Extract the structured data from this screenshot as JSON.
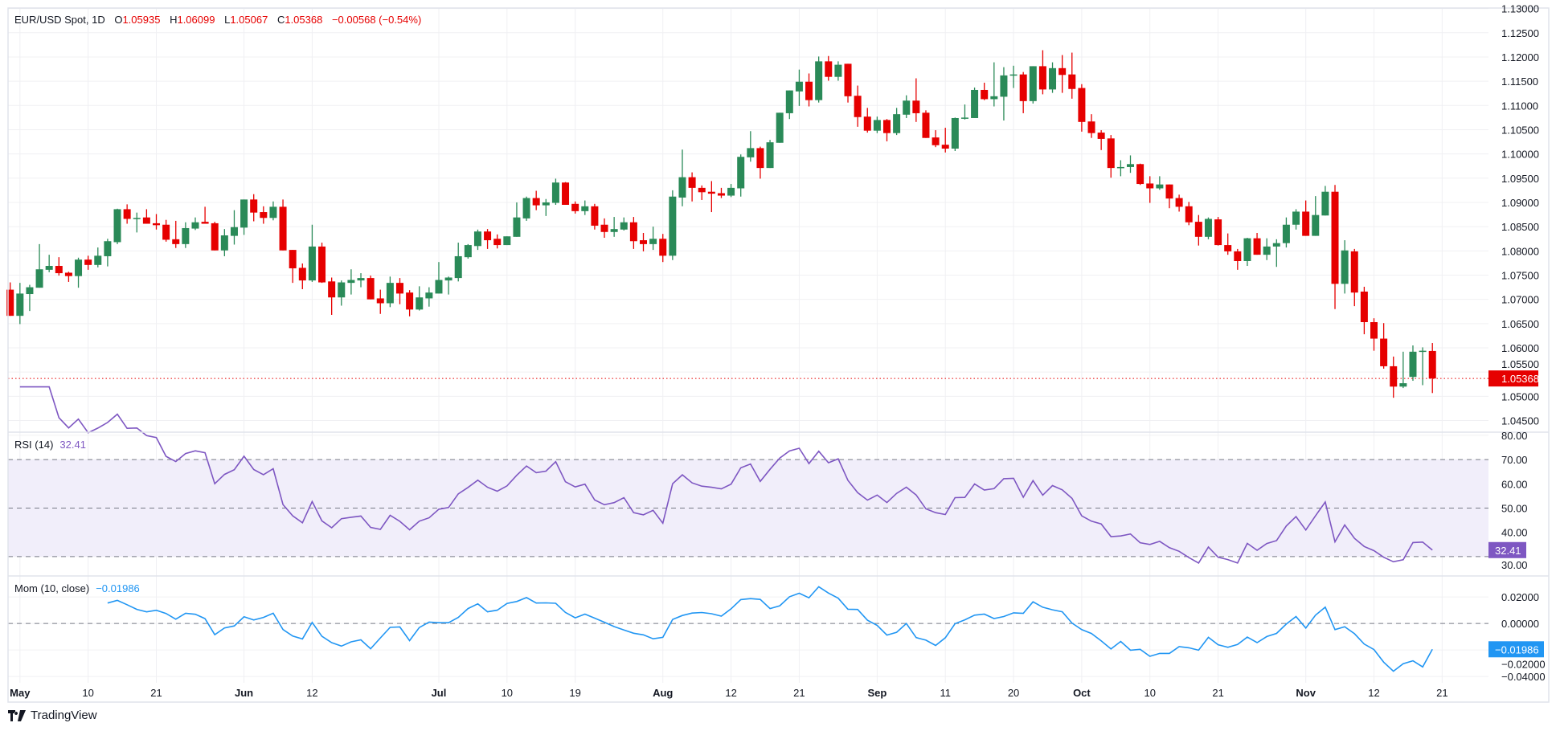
{
  "header": {
    "symbol": "EUR/USD Spot, 1D",
    "o_label": "O",
    "o_value": "1.05935",
    "h_label": "H",
    "h_value": "1.06099",
    "l_label": "L",
    "l_value": "1.05067",
    "c_label": "C",
    "c_value": "1.05368",
    "change": "−0.00568 (−0.54%)"
  },
  "rsi_legend": {
    "label": "RSI (14)",
    "value": "32.41"
  },
  "mom_legend": {
    "label": "Mom (10, close)",
    "value": "−0.01986"
  },
  "branding": {
    "name": "TradingView"
  },
  "colors": {
    "up": "#2a8a58",
    "down": "#e60000",
    "rsi": "#7e57c2",
    "rsi_band": "#f1eefa",
    "mom": "#2196f3",
    "grid": "#f0f0f3",
    "text": "#131722"
  },
  "chart_data": {
    "type": "candlestick",
    "price_axis": {
      "ylim": [
        1.0426,
        1.1301
      ],
      "ticks": [
        "1.04500",
        "1.05000",
        "1.05500",
        "1.06000",
        "1.06500",
        "1.07000",
        "1.07500",
        "1.08000",
        "1.08500",
        "1.09000",
        "1.09500",
        "1.10000",
        "1.10500",
        "1.11000",
        "1.11500",
        "1.12000",
        "1.12500",
        "1.13000"
      ],
      "last_price": 1.05368,
      "last_price_label": "1.05368"
    },
    "rsi_axis": {
      "ylim": [
        22,
        81.3
      ],
      "ticks": [
        "30.00",
        "40.00",
        "50.00",
        "60.00",
        "70.00",
        "80.00"
      ],
      "bands": [
        30,
        50,
        70
      ],
      "period": 14,
      "last_label": "32.41"
    },
    "mom_axis": {
      "ylim": [
        -0.0448,
        0.0358
      ],
      "ticks": [
        "−0.04000",
        "−0.02000",
        "0.00000",
        "0.02000"
      ],
      "tick_values": [
        -0.04,
        -0.02,
        0,
        0.02
      ],
      "zero_line": 0,
      "period": 10,
      "last_label": "−0.01986"
    },
    "x_ticks": [
      {
        "label": "May",
        "date": "05-01",
        "bold": true
      },
      {
        "label": "10",
        "date": "05-10"
      },
      {
        "label": "21",
        "date": "05-21"
      },
      {
        "label": "Jun",
        "date": "06-03",
        "bold": true
      },
      {
        "label": "12",
        "date": "06-12"
      },
      {
        "label": "Jul",
        "date": "07-01",
        "bold": true
      },
      {
        "label": "10",
        "date": "07-10"
      },
      {
        "label": "19",
        "date": "07-19"
      },
      {
        "label": "Aug",
        "date": "08-01",
        "bold": true
      },
      {
        "label": "12",
        "date": "08-12"
      },
      {
        "label": "21",
        "date": "08-21"
      },
      {
        "label": "Sep",
        "date": "09-02",
        "bold": true
      },
      {
        "label": "11",
        "date": "09-11"
      },
      {
        "label": "20",
        "date": "09-20"
      },
      {
        "label": "Oct",
        "date": "10-01",
        "bold": true
      },
      {
        "label": "10",
        "date": "10-10"
      },
      {
        "label": "21",
        "date": "10-21"
      },
      {
        "label": "Nov",
        "date": "11-01",
        "bold": true
      },
      {
        "label": "12",
        "date": "11-12"
      },
      {
        "label": "21",
        "date": "11-21"
      }
    ],
    "dates": [
      "04-30",
      "05-01",
      "05-02",
      "05-03",
      "05-06",
      "05-07",
      "05-08",
      "05-09",
      "05-10",
      "05-13",
      "05-14",
      "05-15",
      "05-16",
      "05-17",
      "05-20",
      "05-21",
      "05-22",
      "05-23",
      "05-24",
      "05-27",
      "05-28",
      "05-29",
      "05-30",
      "05-31",
      "06-03",
      "06-04",
      "06-05",
      "06-06",
      "06-07",
      "06-10",
      "06-11",
      "06-12",
      "06-13",
      "06-14",
      "06-17",
      "06-18",
      "06-19",
      "06-20",
      "06-21",
      "06-24",
      "06-25",
      "06-26",
      "06-27",
      "06-28",
      "07-01",
      "07-02",
      "07-03",
      "07-04",
      "07-05",
      "07-08",
      "07-09",
      "07-10",
      "07-11",
      "07-12",
      "07-15",
      "07-16",
      "07-17",
      "07-18",
      "07-19",
      "07-22",
      "07-23",
      "07-24",
      "07-25",
      "07-26",
      "07-29",
      "07-30",
      "07-31",
      "08-01",
      "08-02",
      "08-05",
      "08-06",
      "08-07",
      "08-08",
      "08-09",
      "08-12",
      "08-13",
      "08-14",
      "08-15",
      "08-16",
      "08-19",
      "08-20",
      "08-21",
      "08-22",
      "08-23",
      "08-26",
      "08-27",
      "08-28",
      "08-29",
      "08-30",
      "09-02",
      "09-03",
      "09-04",
      "09-05",
      "09-06",
      "09-09",
      "09-10",
      "09-11",
      "09-12",
      "09-13",
      "09-16",
      "09-17",
      "09-18",
      "09-19",
      "09-20",
      "09-23",
      "09-24",
      "09-25",
      "09-26",
      "09-27",
      "09-30",
      "10-01",
      "10-02",
      "10-03",
      "10-04",
      "10-07",
      "10-08",
      "10-09",
      "10-10",
      "10-11",
      "10-14",
      "10-15",
      "10-16",
      "10-17",
      "10-18",
      "10-21",
      "10-22",
      "10-23",
      "10-24",
      "10-25",
      "10-28",
      "10-29",
      "10-30",
      "10-31",
      "11-01",
      "11-04",
      "11-05",
      "11-06",
      "11-07",
      "11-08",
      "11-11",
      "11-12",
      "11-13",
      "11-14",
      "11-15",
      "11-18",
      "11-19",
      "11-20"
    ],
    "ohlc": [
      [
        1.072,
        1.0735,
        1.0666,
        1.0666
      ],
      [
        1.0666,
        1.0734,
        1.0649,
        1.0712
      ],
      [
        1.0711,
        1.073,
        1.0676,
        1.0725
      ],
      [
        1.0724,
        1.0814,
        1.0724,
        1.0762
      ],
      [
        1.0761,
        1.0792,
        1.0756,
        1.0769
      ],
      [
        1.0769,
        1.0787,
        1.0749,
        1.0754
      ],
      [
        1.0755,
        1.0757,
        1.0736,
        1.0748
      ],
      [
        1.0748,
        1.0786,
        1.0724,
        1.0782
      ],
      [
        1.0782,
        1.079,
        1.0761,
        1.0771
      ],
      [
        1.0771,
        1.0807,
        1.0766,
        1.079
      ],
      [
        1.0789,
        1.0825,
        1.0768,
        1.082
      ],
      [
        1.0818,
        1.0887,
        1.0814,
        1.0886
      ],
      [
        1.0886,
        1.0896,
        1.0856,
        1.0866
      ],
      [
        1.0867,
        1.0879,
        1.0838,
        1.0868
      ],
      [
        1.0869,
        1.0886,
        1.0856,
        1.0856
      ],
      [
        1.0857,
        1.0876,
        1.0844,
        1.0853
      ],
      [
        1.0854,
        1.0864,
        1.0819,
        1.0823
      ],
      [
        1.0824,
        1.0862,
        1.0806,
        1.0814
      ],
      [
        1.0814,
        1.0859,
        1.0806,
        1.0847
      ],
      [
        1.0846,
        1.0869,
        1.0843,
        1.0859
      ],
      [
        1.086,
        1.0891,
        1.0856,
        1.0856
      ],
      [
        1.0857,
        1.086,
        1.0801,
        1.0801
      ],
      [
        1.0801,
        1.0845,
        1.0789,
        1.0832
      ],
      [
        1.0831,
        1.0884,
        1.0813,
        1.0849
      ],
      [
        1.0848,
        1.0906,
        1.0833,
        1.0906
      ],
      [
        1.0906,
        1.0917,
        1.0861,
        1.0879
      ],
      [
        1.088,
        1.0892,
        1.0856,
        1.0868
      ],
      [
        1.0868,
        1.0902,
        1.0863,
        1.0891
      ],
      [
        1.0891,
        1.0906,
        1.0801,
        1.0801
      ],
      [
        1.0802,
        1.0802,
        1.0734,
        1.0764
      ],
      [
        1.0765,
        1.0774,
        1.0721,
        1.0739
      ],
      [
        1.0739,
        1.0854,
        1.0736,
        1.0809
      ],
      [
        1.0809,
        1.0817,
        1.0734,
        1.0735
      ],
      [
        1.0737,
        1.0745,
        1.0668,
        1.0704
      ],
      [
        1.0704,
        1.0739,
        1.0687,
        1.0735
      ],
      [
        1.0734,
        1.0762,
        1.071,
        1.074
      ],
      [
        1.0739,
        1.0754,
        1.0725,
        1.0744
      ],
      [
        1.0744,
        1.0749,
        1.07,
        1.07
      ],
      [
        1.0702,
        1.072,
        1.067,
        1.0692
      ],
      [
        1.0692,
        1.0747,
        1.0684,
        1.0734
      ],
      [
        1.0734,
        1.0744,
        1.069,
        1.0712
      ],
      [
        1.0714,
        1.0719,
        1.0665,
        1.0679
      ],
      [
        1.0679,
        1.0727,
        1.0677,
        1.0704
      ],
      [
        1.0702,
        1.0725,
        1.0685,
        1.0714
      ],
      [
        1.0712,
        1.0777,
        1.0712,
        1.074
      ],
      [
        1.0739,
        1.0747,
        1.071,
        1.0745
      ],
      [
        1.0744,
        1.0817,
        1.0737,
        1.0789
      ],
      [
        1.0787,
        1.0814,
        1.0784,
        1.0812
      ],
      [
        1.081,
        1.0844,
        1.0802,
        1.084
      ],
      [
        1.084,
        1.0845,
        1.0804,
        1.0822
      ],
      [
        1.0825,
        1.0834,
        1.0805,
        1.0812
      ],
      [
        1.0812,
        1.083,
        1.0812,
        1.083
      ],
      [
        1.0829,
        1.09,
        1.0829,
        1.0869
      ],
      [
        1.0867,
        1.0912,
        1.0862,
        1.0909
      ],
      [
        1.0909,
        1.0924,
        1.0884,
        1.0894
      ],
      [
        1.0894,
        1.0907,
        1.0872,
        1.09
      ],
      [
        1.0899,
        1.0949,
        1.0895,
        1.0941
      ],
      [
        1.0941,
        1.0942,
        1.0895,
        1.0895
      ],
      [
        1.0897,
        1.0902,
        1.0877,
        1.0882
      ],
      [
        1.0882,
        1.0904,
        1.0874,
        1.0892
      ],
      [
        1.0892,
        1.0897,
        1.0844,
        1.0852
      ],
      [
        1.0854,
        1.0867,
        1.0827,
        1.0839
      ],
      [
        1.0839,
        1.087,
        1.0829,
        1.0845
      ],
      [
        1.0844,
        1.0869,
        1.0842,
        1.0859
      ],
      [
        1.0859,
        1.087,
        1.0804,
        1.082
      ],
      [
        1.0822,
        1.0837,
        1.0799,
        1.0814
      ],
      [
        1.0814,
        1.085,
        1.0802,
        1.0825
      ],
      [
        1.0825,
        1.0835,
        1.0777,
        1.079
      ],
      [
        1.079,
        1.0925,
        1.0781,
        1.0912
      ],
      [
        1.091,
        1.1009,
        1.0892,
        1.0952
      ],
      [
        1.0952,
        1.0962,
        1.0902,
        1.093
      ],
      [
        1.093,
        1.0935,
        1.0905,
        1.0921
      ],
      [
        1.0922,
        1.0944,
        1.088,
        1.0918
      ],
      [
        1.0919,
        1.093,
        1.0909,
        1.0914
      ],
      [
        1.0914,
        1.0938,
        1.0911,
        1.093
      ],
      [
        1.0929,
        1.0999,
        1.0912,
        1.0994
      ],
      [
        1.0993,
        1.1047,
        1.0984,
        1.1012
      ],
      [
        1.1012,
        1.1015,
        1.0949,
        1.0971
      ],
      [
        1.0971,
        1.1029,
        1.0971,
        1.1024
      ],
      [
        1.1023,
        1.1085,
        1.1023,
        1.1085
      ],
      [
        1.1084,
        1.1131,
        1.1072,
        1.1131
      ],
      [
        1.1129,
        1.1174,
        1.1099,
        1.1149
      ],
      [
        1.1149,
        1.1166,
        1.1098,
        1.1111
      ],
      [
        1.1111,
        1.1201,
        1.1106,
        1.1191
      ],
      [
        1.1191,
        1.1202,
        1.1151,
        1.1159
      ],
      [
        1.1159,
        1.1191,
        1.1151,
        1.1184
      ],
      [
        1.1186,
        1.1186,
        1.1106,
        1.1119
      ],
      [
        1.112,
        1.1141,
        1.1056,
        1.1076
      ],
      [
        1.1077,
        1.1095,
        1.1044,
        1.1048
      ],
      [
        1.1048,
        1.1077,
        1.1043,
        1.107
      ],
      [
        1.107,
        1.1072,
        1.1026,
        1.1043
      ],
      [
        1.1043,
        1.1095,
        1.1039,
        1.1082
      ],
      [
        1.1081,
        1.1121,
        1.1074,
        1.111
      ],
      [
        1.111,
        1.1156,
        1.1066,
        1.1084
      ],
      [
        1.1085,
        1.109,
        1.1033,
        1.1033
      ],
      [
        1.1034,
        1.1049,
        1.1014,
        1.1018
      ],
      [
        1.1019,
        1.1054,
        1.1003,
        1.1011
      ],
      [
        1.1011,
        1.1075,
        1.1006,
        1.1074
      ],
      [
        1.1074,
        1.1102,
        1.1071,
        1.1075
      ],
      [
        1.1074,
        1.1137,
        1.1074,
        1.1132
      ],
      [
        1.1132,
        1.1147,
        1.1111,
        1.1113
      ],
      [
        1.1113,
        1.1189,
        1.1098,
        1.1119
      ],
      [
        1.1118,
        1.1179,
        1.1069,
        1.1162
      ],
      [
        1.1162,
        1.1182,
        1.1136,
        1.1164
      ],
      [
        1.1164,
        1.1169,
        1.1084,
        1.1109
      ],
      [
        1.1109,
        1.1181,
        1.1104,
        1.1181
      ],
      [
        1.1181,
        1.1214,
        1.1123,
        1.1133
      ],
      [
        1.1133,
        1.1189,
        1.1126,
        1.1177
      ],
      [
        1.1177,
        1.1204,
        1.1126,
        1.1163
      ],
      [
        1.1164,
        1.1209,
        1.1114,
        1.1134
      ],
      [
        1.1136,
        1.1144,
        1.1046,
        1.1066
      ],
      [
        1.1067,
        1.1082,
        1.1033,
        1.1043
      ],
      [
        1.1044,
        1.1049,
        1.1008,
        1.1031
      ],
      [
        1.1032,
        1.1039,
        1.0951,
        1.0971
      ],
      [
        1.0971,
        1.0987,
        1.0954,
        1.0973
      ],
      [
        1.0973,
        1.0997,
        1.0961,
        1.0979
      ],
      [
        1.0979,
        1.098,
        1.0936,
        1.0938
      ],
      [
        1.0939,
        1.0954,
        1.0899,
        1.0929
      ],
      [
        1.0929,
        1.0954,
        1.0926,
        1.0937
      ],
      [
        1.0937,
        1.0937,
        1.0888,
        1.0908
      ],
      [
        1.0909,
        1.0916,
        1.0881,
        1.0891
      ],
      [
        1.0892,
        1.0901,
        1.0853,
        1.0859
      ],
      [
        1.086,
        1.0874,
        1.0811,
        1.0829
      ],
      [
        1.0829,
        1.0869,
        1.0824,
        1.0866
      ],
      [
        1.0865,
        1.087,
        1.0811,
        1.0812
      ],
      [
        1.0812,
        1.0836,
        1.0792,
        1.0799
      ],
      [
        1.0799,
        1.0804,
        1.0761,
        1.0779
      ],
      [
        1.0779,
        1.0827,
        1.0769,
        1.0826
      ],
      [
        1.0826,
        1.0837,
        1.0792,
        1.0792
      ],
      [
        1.0792,
        1.0826,
        1.0781,
        1.0809
      ],
      [
        1.0809,
        1.0824,
        1.0767,
        1.0816
      ],
      [
        1.0816,
        1.0869,
        1.0807,
        1.0854
      ],
      [
        1.0854,
        1.0886,
        1.0844,
        1.0881
      ],
      [
        1.0881,
        1.0904,
        1.0831,
        1.0831
      ],
      [
        1.0831,
        1.0913,
        1.0831,
        1.0874
      ],
      [
        1.0873,
        1.0934,
        1.0873,
        1.0922
      ],
      [
        1.0922,
        1.0936,
        1.068,
        1.0732
      ],
      [
        1.0732,
        1.0822,
        1.0712,
        1.0801
      ],
      [
        1.0799,
        1.0804,
        1.0686,
        1.0714
      ],
      [
        1.0716,
        1.0726,
        1.0628,
        1.0653
      ],
      [
        1.0653,
        1.0661,
        1.0594,
        1.0619
      ],
      [
        1.0619,
        1.0651,
        1.0557,
        1.0562
      ],
      [
        1.0562,
        1.0582,
        1.0497,
        1.052
      ],
      [
        1.052,
        1.0592,
        1.0517,
        1.0527
      ],
      [
        1.054,
        1.0605,
        1.0532,
        1.0592
      ],
      [
        1.0593,
        1.0601,
        1.0523,
        1.0594
      ],
      [
        1.05935,
        1.06099,
        1.05067,
        1.05368
      ]
    ]
  }
}
